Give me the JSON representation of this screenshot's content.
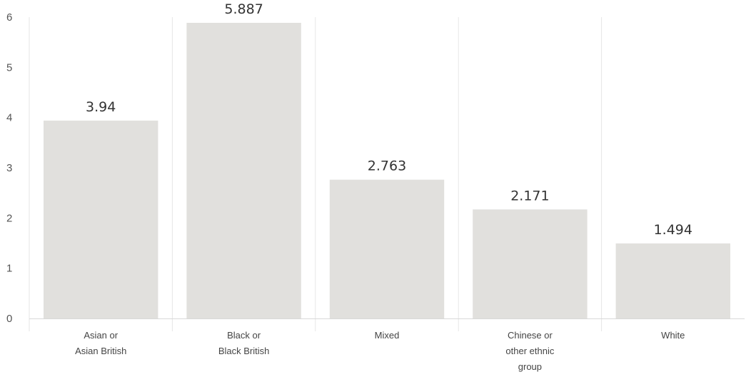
{
  "chart_data": {
    "type": "bar",
    "categories": [
      [
        "Asian or",
        "Asian British"
      ],
      [
        "Black or",
        "Black British"
      ],
      [
        "Mixed"
      ],
      [
        "Chinese or",
        "other ethnic",
        "group"
      ],
      [
        "White"
      ]
    ],
    "values": [
      3.94,
      5.887,
      2.763,
      2.171,
      1.494
    ],
    "value_labels": [
      "3.94",
      "5.887",
      "2.763",
      "2.171",
      "1.494"
    ],
    "yticks": [
      "0",
      "1",
      "2",
      "3",
      "4",
      "5",
      "6"
    ],
    "ylim": [
      0,
      6
    ],
    "bar_color": "#e1e0dd",
    "grid": "vertical category dividers"
  }
}
